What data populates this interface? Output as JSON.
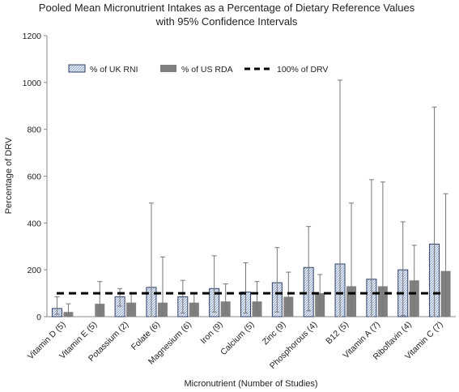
{
  "chart_data": {
    "type": "bar",
    "title_line1": "Pooled Mean Micronutrient Intakes as a Percentage of Dietary Reference Values",
    "title_line2": "with 95% Confidence Intervals",
    "xlabel": "Micronutrient (Number of Studies)",
    "ylabel": "Percentage of DRV",
    "ylim": [
      0,
      1200
    ],
    "yticks": [
      "0",
      "200",
      "400",
      "600",
      "800",
      "1000",
      "1200"
    ],
    "grid": false,
    "legend_position": "top-left",
    "categories": [
      "Vitamin D (5)",
      "Vitamin E (5)",
      "Potassium (2)",
      "Folate (6)",
      "Magnesium (6)",
      "Iron (9)",
      "Calcium (5)",
      "Zinc (9)",
      "Phosphorous (4)",
      "B12 (5)",
      "Vitamin A (7)",
      "Riboflavin (4)",
      "Vitamin C (7)"
    ],
    "series": [
      {
        "name": "% of UK RNI",
        "color": "#c8d6ea",
        "values": [
          35,
          null,
          85,
          125,
          85,
          120,
          105,
          145,
          210,
          225,
          160,
          200,
          310
        ],
        "ci_lower": [
          10,
          null,
          45,
          0,
          15,
          20,
          15,
          20,
          25,
          0,
          0,
          5,
          0
        ],
        "ci_upper": [
          85,
          null,
          120,
          485,
          155,
          260,
          230,
          295,
          385,
          1010,
          585,
          405,
          895
        ]
      },
      {
        "name": "% of US RDA",
        "color": "#808080",
        "values": [
          20,
          55,
          60,
          60,
          60,
          65,
          65,
          85,
          100,
          130,
          130,
          155,
          195
        ],
        "ci_lower": [
          0,
          0,
          30,
          0,
          15,
          15,
          10,
          20,
          20,
          0,
          0,
          0,
          0
        ],
        "ci_upper": [
          55,
          150,
          100,
          255,
          100,
          140,
          150,
          190,
          180,
          485,
          575,
          305,
          525
        ]
      }
    ],
    "reference_line": {
      "name": "100% of DRV",
      "value": 100
    }
  }
}
